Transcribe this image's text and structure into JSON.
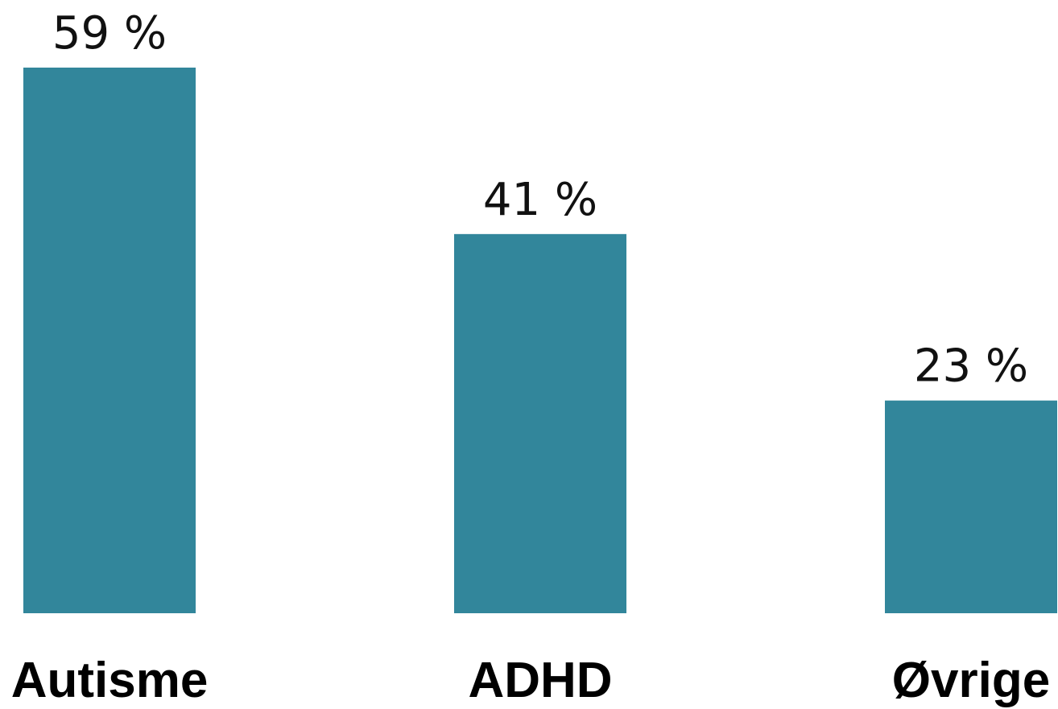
{
  "chart_data": {
    "type": "bar",
    "categories": [
      "Autisme",
      "ADHD",
      "Øvrige"
    ],
    "values": [
      59,
      41,
      23
    ],
    "value_labels": [
      "59 %",
      "41 %",
      "23 %"
    ],
    "title": "",
    "xlabel": "",
    "ylabel": "",
    "ylim": [
      0,
      59
    ],
    "grid": false,
    "legend": "none",
    "colors": {
      "bar": "#32869B",
      "value_text": "#111111",
      "category_text": "#000000"
    }
  }
}
